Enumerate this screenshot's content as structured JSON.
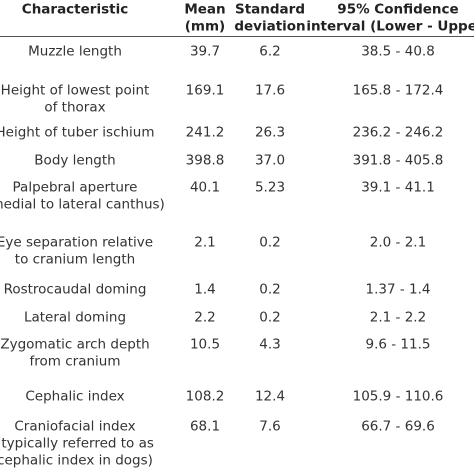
{
  "table": {
    "header": [
      [
        "Characteristic"
      ],
      [
        "Mean",
        "(mm)"
      ],
      [
        "Standard",
        "deviation"
      ],
      [
        "95% Confidence",
        "interval (Lower - Upper)"
      ]
    ],
    "rows": [
      [
        [
          "Muzzle length"
        ],
        "39.7",
        "6.2",
        "38.5 - 40.8"
      ],
      [
        [
          "Height of lowest point",
          "of thorax"
        ],
        "169.1",
        "17.6",
        "165.8 - 172.4"
      ],
      [
        [
          "Height of tuber ischium"
        ],
        "241.2",
        "26.3",
        "236.2 - 246.2"
      ],
      [
        [
          "Body length"
        ],
        "398.8",
        "37.0",
        "391.8 - 405.8"
      ],
      [
        [
          "Palpebral aperture",
          "(medial to lateral canthus)"
        ],
        "40.1",
        "5.23",
        "39.1 - 41.1"
      ],
      [
        [
          "Eye separation relative",
          "to cranium length"
        ],
        "2.1",
        "0.2",
        "2.0 - 2.1"
      ],
      [
        [
          "Rostrocaudal doming"
        ],
        "1.4",
        "0.2",
        "1.37 - 1.4"
      ],
      [
        [
          "Lateral doming"
        ],
        "2.2",
        "0.2",
        "2.1 - 2.2"
      ],
      [
        [
          "Zygomatic arch depth",
          "from cranium"
        ],
        "10.5",
        "4.3",
        "9.6 - 11.5"
      ],
      [
        [
          "Cephalic index"
        ],
        "108.2",
        "12.4",
        "105.9 - 110.6"
      ],
      [
        [
          "Craniofacial index",
          "(typically referred to as",
          "cephalic index in dogs)"
        ],
        "68.1",
        "7.6",
        "66.7 - 69.6"
      ]
    ]
  }
}
